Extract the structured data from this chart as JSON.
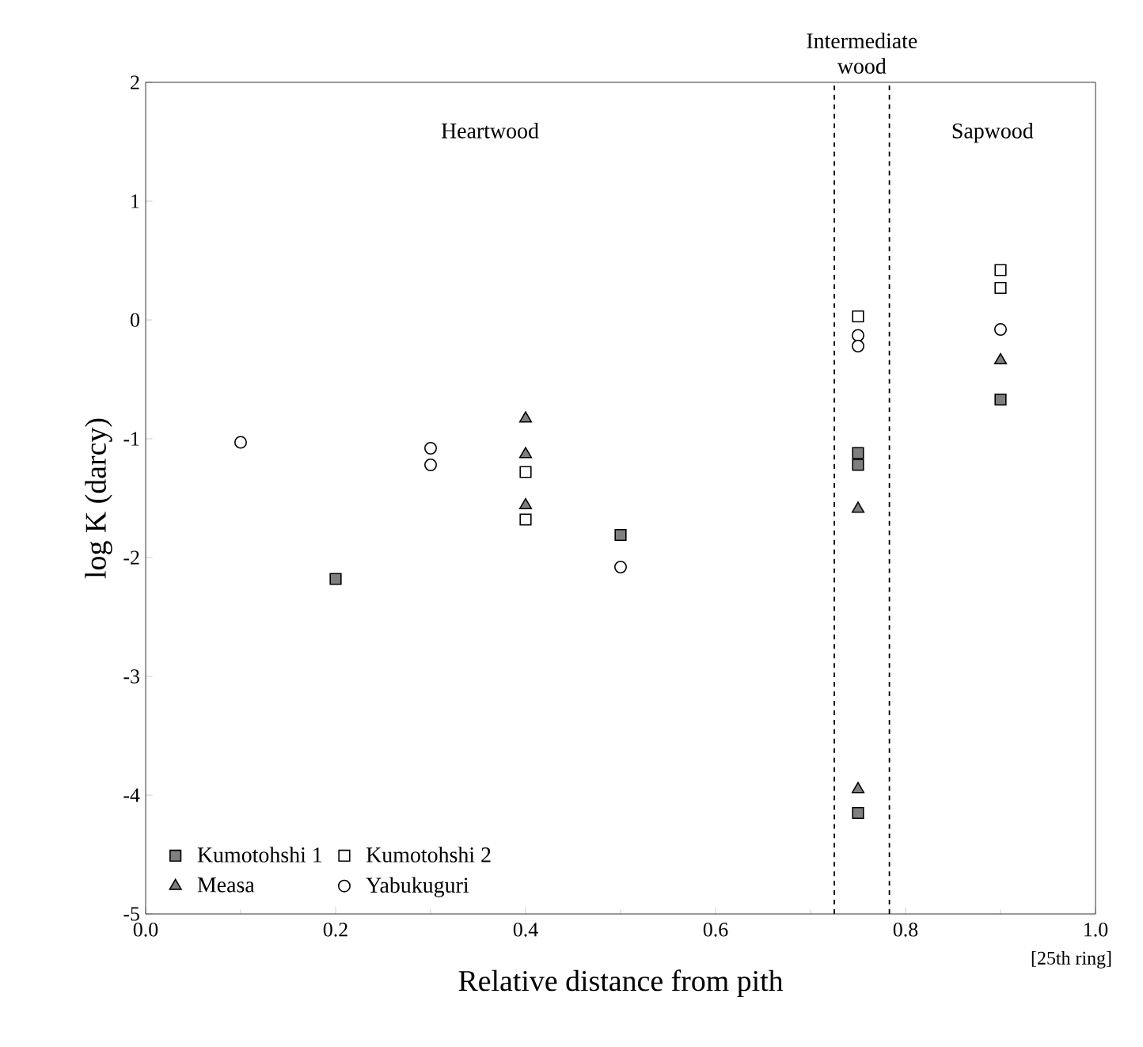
{
  "chart_data": {
    "type": "scatter",
    "xlabel": "Relative distance from pith",
    "ylabel": "log K (darcy)",
    "xlim": [
      0,
      1
    ],
    "ylim": [
      -5,
      2
    ],
    "xticks": [
      {
        "value": 0,
        "label": "0.0"
      },
      {
        "value": 0.2,
        "label": "0.2"
      },
      {
        "value": 0.4,
        "label": "0.4"
      },
      {
        "value": 0.6,
        "label": "0.6"
      },
      {
        "value": 0.8,
        "label": "0.8"
      },
      {
        "value": 1,
        "label": "1.0"
      }
    ],
    "yticks": [
      -5,
      -4,
      -3,
      -2,
      -1,
      0,
      1,
      2
    ],
    "legend": "bottom left",
    "series": [
      {
        "name": "Kumotohshi 1",
        "color": "#7f7f7f",
        "marker": "square",
        "x": [
          0.2,
          0.5,
          0.75,
          0.75,
          0.75,
          0.9
        ],
        "values": [
          -2.18,
          -1.81,
          -1.12,
          -1.22,
          -4.15,
          -0.67
        ]
      },
      {
        "name": "Kumotohshi 2",
        "color": "#ffffff",
        "marker": "square",
        "x": [
          0.4,
          0.4,
          0.75,
          0.9,
          0.9
        ],
        "values": [
          -1.28,
          -1.68,
          0.03,
          0.42,
          0.27
        ]
      },
      {
        "name": "Measa",
        "color": "#7f7f7f",
        "marker": "triangle",
        "x": [
          0.4,
          0.4,
          0.4,
          0.75,
          0.75,
          0.9
        ],
        "values": [
          -0.83,
          -1.13,
          -1.56,
          -1.59,
          -3.95,
          -0.34
        ]
      },
      {
        "name": "Yabukuguri",
        "color": "#ffffff",
        "marker": "circle",
        "x": [
          0.1,
          0.3,
          0.3,
          0.5,
          0.75,
          0.75,
          0.9
        ],
        "values": [
          -1.03,
          -1.08,
          -1.22,
          -2.08,
          -0.13,
          -0.22,
          -0.08
        ]
      }
    ],
    "ref_lines": [
      {
        "axis": "x",
        "value": 0.725,
        "line_style": "dashed"
      },
      {
        "axis": "x",
        "value": 0.783,
        "line_style": "dashed"
      }
    ],
    "annotations": [
      "Heartwood",
      "Intermediate wood",
      "Sapwood",
      "[25th ring]"
    ]
  }
}
